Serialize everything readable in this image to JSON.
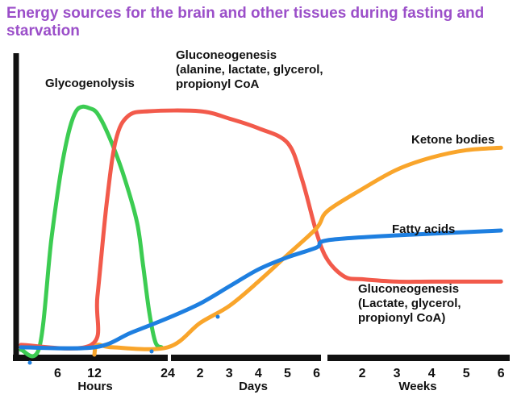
{
  "chart_data": {
    "type": "line",
    "title": "Energy sources for the brain and other tissues during fasting and starvation",
    "colors": {
      "title": "#9b4fc9",
      "glycogenolysis": "#3ccc52",
      "gluconeogenesis": "#f25a4b",
      "ketone_bodies": "#f9a52b",
      "fatty_acids": "#1e7fe0",
      "axis": "#111111"
    },
    "x_segments": [
      {
        "name": "Hours",
        "unit": "hours",
        "range": [
          0,
          24
        ],
        "ticks": [
          "6",
          "12",
          "24"
        ],
        "tick_values": [
          6,
          12,
          24
        ]
      },
      {
        "name": "Days",
        "unit": "days",
        "range": [
          1,
          6
        ],
        "ticks": [
          "2",
          "3",
          "4",
          "5",
          "6"
        ],
        "tick_values": [
          2,
          3,
          4,
          5,
          6
        ]
      },
      {
        "name": "Weeks",
        "unit": "weeks",
        "range": [
          1,
          6
        ],
        "ticks": [
          "2",
          "3",
          "4",
          "5",
          "6"
        ],
        "tick_values": [
          2,
          3,
          4,
          5,
          6
        ]
      }
    ],
    "y_scale": "relative contribution (unlabeled, 0–100)",
    "ylim": [
      0,
      100
    ],
    "grid": false,
    "legend": "none (inline labels)",
    "annotations": [
      {
        "id": "glycogenolysis",
        "lines": [
          "Glycogenolysis"
        ]
      },
      {
        "id": "gluco1",
        "lines": [
          "Gluconeogenesis",
          "(alanine, lactate, glycerol,",
          "propionyl CoA"
        ]
      },
      {
        "id": "ketone",
        "lines": [
          "Ketone bodies"
        ]
      },
      {
        "id": "fatty",
        "lines": [
          "Fatty acids"
        ]
      },
      {
        "id": "gluco2",
        "lines": [
          "Gluconeogenesis",
          "(Lactate, glycerol,",
          "propionyl CoA)"
        ]
      }
    ],
    "series": [
      {
        "key": "glycogenolysis",
        "color_key": "glycogenolysis",
        "points": [
          [
            0,
            0,
            2
          ],
          [
            0,
            3,
            3
          ],
          [
            0,
            5,
            48
          ],
          [
            0,
            7,
            82
          ],
          [
            0,
            9,
            100
          ],
          [
            0,
            11.5,
            101
          ],
          [
            0,
            13,
            97
          ],
          [
            0,
            15,
            86
          ],
          [
            0,
            17,
            72
          ],
          [
            0,
            19,
            54
          ],
          [
            0,
            20,
            36
          ],
          [
            0,
            21,
            17
          ],
          [
            0,
            22,
            5
          ],
          [
            0,
            23,
            3
          ]
        ]
      },
      {
        "key": "gluconeogenesis",
        "color_key": "gluconeogenesis",
        "points": [
          [
            0,
            0,
            4
          ],
          [
            0,
            11.5,
            4
          ],
          [
            0,
            12.5,
            24
          ],
          [
            0,
            14,
            62
          ],
          [
            0,
            15.5,
            88
          ],
          [
            0,
            17.5,
            98
          ],
          [
            0,
            21,
            100
          ],
          [
            1,
            2,
            100
          ],
          [
            1,
            3,
            97
          ],
          [
            1,
            4,
            93
          ],
          [
            1,
            5,
            87
          ],
          [
            1,
            5.5,
            72
          ],
          [
            1,
            6,
            50
          ],
          [
            2,
            1,
            39
          ],
          [
            2,
            1.5,
            32
          ],
          [
            2,
            2,
            31
          ],
          [
            2,
            3,
            30
          ],
          [
            2,
            4,
            30
          ],
          [
            2,
            6,
            30
          ]
        ]
      },
      {
        "key": "ketone_bodies",
        "color_key": "ketone_bodies",
        "points": [
          [
            0,
            12,
            0
          ],
          [
            0,
            12.5,
            4
          ],
          [
            0,
            15,
            3
          ],
          [
            0,
            24,
            3
          ],
          [
            1,
            2,
            13
          ],
          [
            1,
            3,
            20
          ],
          [
            1,
            4,
            30
          ],
          [
            1,
            5,
            41
          ],
          [
            1,
            6,
            52
          ],
          [
            2,
            1,
            59
          ],
          [
            2,
            2,
            68
          ],
          [
            2,
            3,
            76
          ],
          [
            2,
            4,
            81
          ],
          [
            2,
            5,
            84
          ],
          [
            2,
            6,
            85
          ]
        ]
      },
      {
        "key": "fatty_acids",
        "color_key": "fatty_acids",
        "points": [
          [
            0,
            0,
            3
          ],
          [
            0,
            12,
            3
          ],
          [
            0,
            18,
            9
          ],
          [
            0,
            24,
            15
          ],
          [
            1,
            2,
            21
          ],
          [
            1,
            3,
            28
          ],
          [
            1,
            4,
            35
          ],
          [
            1,
            5,
            40
          ],
          [
            1,
            6,
            44
          ],
          [
            2,
            1,
            47
          ],
          [
            2,
            3,
            49
          ],
          [
            2,
            6,
            51
          ]
        ]
      }
    ]
  }
}
